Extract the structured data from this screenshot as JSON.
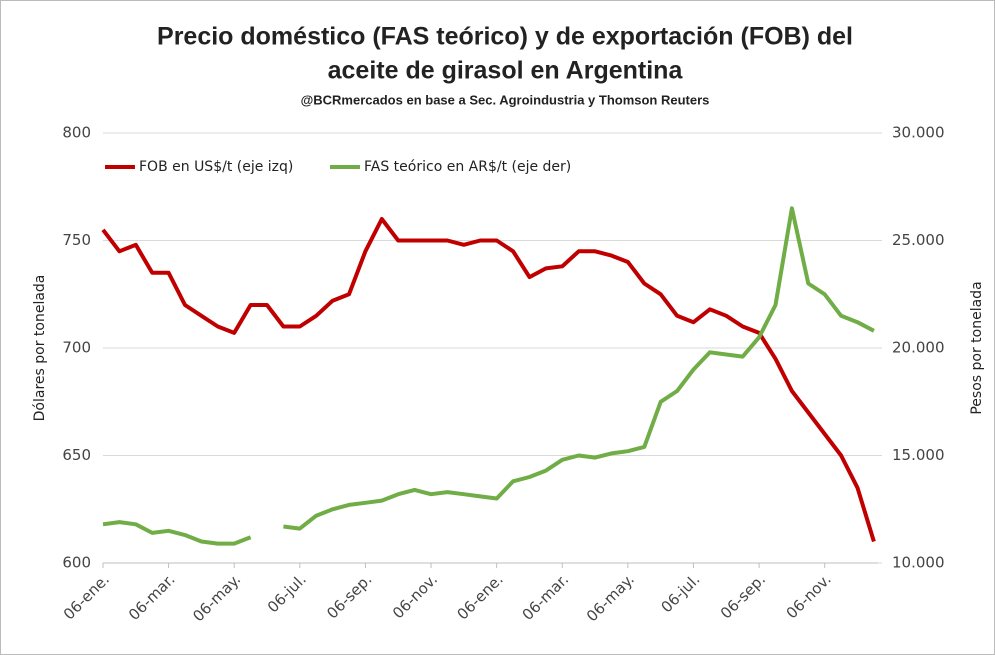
{
  "chart_data": {
    "type": "line",
    "title": "Precio doméstico (FAS teórico) y de exportación (FOB) del",
    "title_line2": "aceite de girasol en Argentina",
    "subtitle": "@BCRmercados en base a Sec. Agroindustria y Thomson Reuters",
    "y_label": "Dólares por tonelada",
    "y2_label": "Pesos por tonelada",
    "categories": [
      "06-ene.",
      null,
      null,
      null,
      "06-mar.",
      null,
      null,
      null,
      "06-may.",
      null,
      null,
      null,
      "06-jul.",
      null,
      null,
      null,
      "06-sep.",
      null,
      null,
      null,
      "06-nov.",
      null,
      null,
      null,
      "06-ene.",
      null,
      null,
      null,
      "06-mar.",
      null,
      null,
      null,
      "06-may.",
      null,
      null,
      null,
      "06-jul.",
      null,
      null,
      null,
      "06-sep.",
      null,
      null,
      null,
      "06-nov.",
      null,
      null,
      null
    ],
    "ylim": [
      600,
      800
    ],
    "yticks": [
      600,
      650,
      700,
      750,
      800
    ],
    "y2lim": [
      10000,
      30000
    ],
    "y2ticks": [
      {
        "value": 10000,
        "label": "10.000"
      },
      {
        "value": 15000,
        "label": "15.000"
      },
      {
        "value": 20000,
        "label": "20.000"
      },
      {
        "value": 25000,
        "label": "25.000"
      },
      {
        "value": 30000,
        "label": "30.000"
      }
    ],
    "grid": true,
    "legend": "top",
    "series": [
      {
        "name": "FOB en US$/t (eje izq)",
        "color": "#c00000",
        "values": [
          755,
          745,
          748,
          735,
          735,
          720,
          715,
          710,
          707,
          720,
          720,
          710,
          710,
          715,
          722,
          725,
          745,
          760,
          750,
          750,
          750,
          750,
          748,
          750,
          750,
          745,
          733,
          737,
          738,
          745,
          745,
          743,
          740,
          730,
          725,
          715,
          712,
          718,
          715,
          710,
          707,
          695,
          680,
          670,
          660,
          650,
          635,
          610
        ]
      },
      {
        "name": "FAS teórico en AR$/t (eje der)",
        "color": "#70ad47",
        "axis": "y2",
        "values": [
          11800,
          11900,
          11800,
          11400,
          11500,
          11300,
          11000,
          10900,
          10900,
          11200,
          null,
          11700,
          11600,
          12200,
          12500,
          12700,
          12800,
          12900,
          13200,
          13400,
          13200,
          13300,
          13200,
          13100,
          13000,
          13800,
          14000,
          14300,
          14800,
          15000,
          14900,
          15100,
          15200,
          15400,
          17500,
          18000,
          19000,
          19800,
          19700,
          19600,
          20500,
          22000,
          26500,
          23000,
          22500,
          21500,
          21200,
          20800
        ]
      }
    ]
  }
}
